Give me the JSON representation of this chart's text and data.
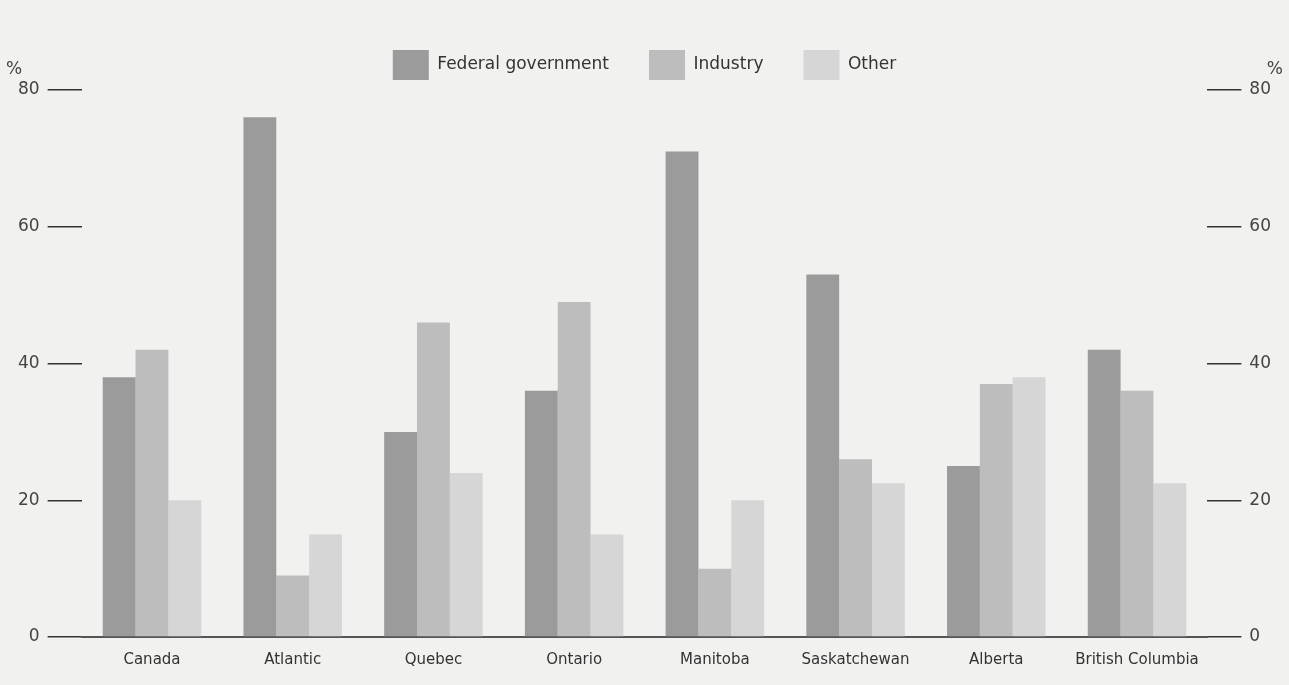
{
  "chart_data": {
    "type": "bar",
    "ylabel": "%",
    "y2label": "%",
    "categories": [
      "Canada",
      "Atlantic",
      "Quebec",
      "Ontario",
      "Manitoba",
      "Saskatchewan",
      "Alberta",
      "British Columbia"
    ],
    "series": [
      {
        "name": "Federal government",
        "color": "#9b9b9b",
        "values": [
          38,
          76,
          30,
          36,
          71,
          53,
          25,
          42
        ]
      },
      {
        "name": "Industry",
        "color": "#bdbdbd",
        "values": [
          42,
          9,
          46,
          49,
          10,
          26,
          37,
          36
        ]
      },
      {
        "name": "Other",
        "color": "#d6d6d6",
        "values": [
          20,
          15,
          24,
          15,
          20,
          22.5,
          38,
          22.5
        ]
      }
    ],
    "ylim": [
      0,
      80
    ],
    "yticks": [
      0,
      20,
      40,
      60,
      80
    ],
    "y2lim": [
      0,
      80
    ],
    "y2ticks": [
      0,
      20,
      40,
      60,
      80
    ],
    "grid": false,
    "legend": "top"
  }
}
